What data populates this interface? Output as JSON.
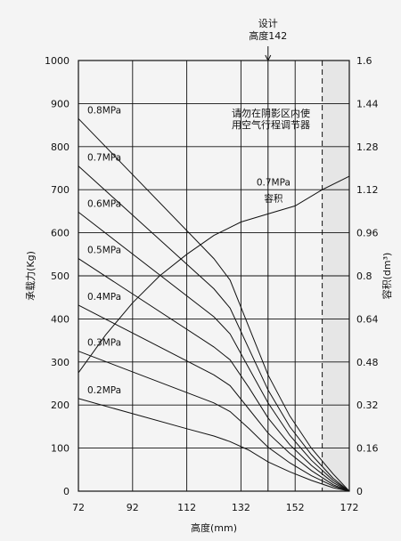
{
  "chart_data": {
    "type": "line",
    "xlabel": "高度(mm)",
    "ylabel_left": "承载力(Kg)",
    "ylabel_right": "容积(dm³)",
    "x_ticks": [
      "72",
      "92",
      "112",
      "132",
      "152",
      "172"
    ],
    "y_left_ticks": [
      "0",
      "100",
      "200",
      "300",
      "400",
      "500",
      "600",
      "700",
      "800",
      "900",
      "1000"
    ],
    "y_right_ticks": [
      "0",
      "0.16",
      "0.32",
      "0.48",
      "0.64",
      "0.8",
      "0.96",
      "1.12",
      "1.28",
      "1.44",
      "1.6"
    ],
    "xlim": [
      72,
      172
    ],
    "ylim_left": [
      0,
      1000
    ],
    "ylim_right": [
      0,
      1.6
    ],
    "design_marker": {
      "x": 142,
      "label_line1": "设计",
      "label_line2": "高度142"
    },
    "shaded_region": {
      "x_from": 162,
      "x_to": 172,
      "note_line1": "请勿在阴影区内使",
      "note_line2": "用空气行程调节器"
    },
    "grid": true,
    "series": [
      {
        "name": "0.8MPa",
        "axis": "left",
        "x": [
          72,
          122,
          128,
          135,
          142,
          150,
          158,
          166,
          172
        ],
        "y": [
          865,
          540,
          490,
          380,
          270,
          175,
          100,
          40,
          0
        ]
      },
      {
        "name": "0.7MPa",
        "axis": "left",
        "x": [
          72,
          122,
          128,
          135,
          142,
          150,
          158,
          166,
          172
        ],
        "y": [
          755,
          470,
          425,
          330,
          235,
          150,
          85,
          30,
          0
        ]
      },
      {
        "name": "0.6MPa",
        "axis": "left",
        "x": [
          72,
          122,
          128,
          135,
          142,
          150,
          158,
          166,
          172
        ],
        "y": [
          648,
          405,
          365,
          285,
          205,
          130,
          72,
          25,
          0
        ]
      },
      {
        "name": "0.5MPa",
        "axis": "left",
        "x": [
          72,
          122,
          128,
          135,
          142,
          150,
          158,
          166,
          172
        ],
        "y": [
          540,
          335,
          305,
          240,
          170,
          108,
          60,
          20,
          0
        ]
      },
      {
        "name": "0.4MPa",
        "axis": "left",
        "x": [
          72,
          122,
          128,
          135,
          142,
          150,
          158,
          166,
          172
        ],
        "y": [
          432,
          270,
          245,
          190,
          135,
          88,
          48,
          15,
          0
        ]
      },
      {
        "name": "0.3MPa",
        "axis": "left",
        "x": [
          72,
          122,
          128,
          135,
          142,
          150,
          158,
          166,
          172
        ],
        "y": [
          325,
          205,
          185,
          145,
          102,
          66,
          36,
          12,
          0
        ]
      },
      {
        "name": "0.2MPa",
        "axis": "left",
        "x": [
          72,
          92,
          112,
          122,
          128,
          135,
          142,
          150,
          158,
          166,
          172
        ],
        "y": [
          215,
          180,
          145,
          128,
          115,
          95,
          68,
          45,
          25,
          8,
          0
        ]
      },
      {
        "name": "0.7MPa",
        "name_line2": "容积",
        "axis": "right",
        "x": [
          72,
          82,
          92,
          102,
          112,
          122,
          132,
          142,
          152,
          162,
          172
        ],
        "y": [
          0.44,
          0.58,
          0.7,
          0.8,
          0.88,
          0.95,
          1.0,
          1.03,
          1.06,
          1.12,
          1.17
        ]
      }
    ]
  }
}
